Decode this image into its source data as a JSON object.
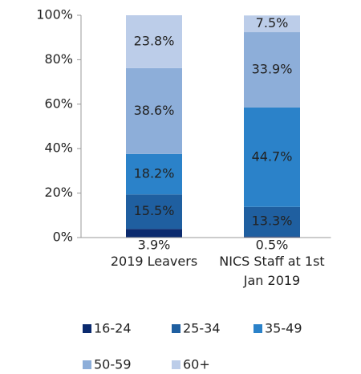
{
  "chart_data": {
    "type": "stacked_bar",
    "categories": [
      "2019 Leavers",
      "NICS Staff at 1st Jan 2019"
    ],
    "series": [
      {
        "name": "16-24",
        "color": "#0b2a6e",
        "values": [
          3.9,
          0.5
        ],
        "value_labels": [
          "3.9%",
          "0.5%"
        ]
      },
      {
        "name": "25-34",
        "color": "#1f5fa0",
        "values": [
          15.5,
          13.3
        ],
        "value_labels": [
          "15.5%",
          "13.3%"
        ]
      },
      {
        "name": "35-49",
        "color": "#2b82c9",
        "values": [
          18.2,
          44.7
        ],
        "value_labels": [
          "18.2%",
          "44.7%"
        ]
      },
      {
        "name": "50-59",
        "color": "#8daed9",
        "values": [
          38.6,
          33.9
        ],
        "value_labels": [
          "38.6%",
          "33.9%"
        ]
      },
      {
        "name": "60+",
        "color": "#bccde9",
        "values": [
          23.8,
          7.5
        ],
        "value_labels": [
          "23.8%",
          "7.5%"
        ]
      }
    ],
    "ylim": [
      0,
      100
    ],
    "yticks": [
      {
        "value": 0,
        "label": "0%"
      },
      {
        "value": 20,
        "label": "20%"
      },
      {
        "value": 40,
        "label": "40%"
      },
      {
        "value": 60,
        "label": "60%"
      },
      {
        "value": 80,
        "label": "80%"
      },
      {
        "value": 100,
        "label": "100%"
      }
    ],
    "legend": "bottom"
  }
}
